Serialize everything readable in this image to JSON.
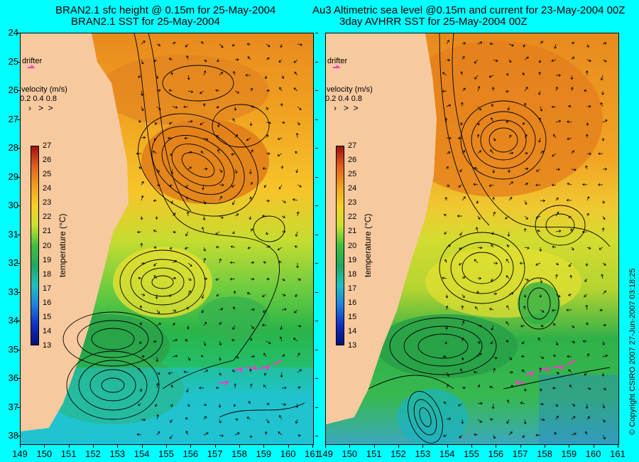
{
  "left_panel": {
    "title_line1": "BRAN2.1 sfc height @ 0.15m for 25-May-2004",
    "title_line2": "BRAN2.1 SST for 25-May-2004",
    "drifter_label": "drifter",
    "velocity_label": "velocity (m/s)",
    "velocity_scale": "0.2 0.4 0.8"
  },
  "right_panel": {
    "title_line1": "Au3 Altimetric sea level  @0.15m and current for 23-May-2004 00Z",
    "title_line2": "3day AVHRR SST for 25-May-2004 00Z",
    "drifter_label": "drifter",
    "velocity_label": "velocity (m/s)",
    "velocity_scale": "0.2 0.4 0.8"
  },
  "colorbar": {
    "title": "temperature (°C)",
    "labels": [
      "27",
      "26",
      "25",
      "24",
      "23",
      "22",
      "21",
      "20",
      "19",
      "18",
      "17",
      "16",
      "15",
      "14",
      "13"
    ]
  },
  "axes": {
    "lat_labels": [
      "24",
      "25",
      "26",
      "27",
      "28",
      "29",
      "30",
      "31",
      "32",
      "33",
      "34",
      "35",
      "36",
      "37",
      "38"
    ],
    "lon_labels_left": [
      "149",
      "150",
      "151",
      "152",
      "153",
      "154",
      "155",
      "156",
      "157",
      "158",
      "159",
      "160",
      "161"
    ],
    "lon_labels_right": [
      "149",
      "150",
      "151",
      "152",
      "153",
      "154",
      "155",
      "156",
      "157",
      "158",
      "159",
      "160",
      "161"
    ]
  },
  "copyright": "© Copyright CSIRO 2007   27-Jun-2007 03:18:25",
  "colors": {
    "background": "#00ffff",
    "land": "#f7c99e",
    "drifter": "#ff33cc"
  }
}
